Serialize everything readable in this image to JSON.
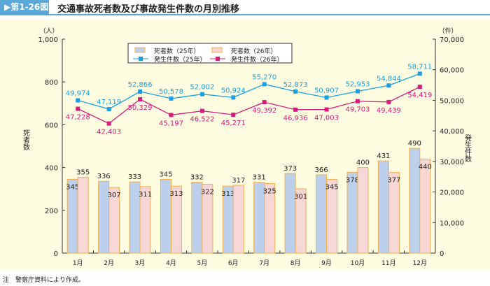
{
  "header": {
    "figure_label": "▶第1-26図",
    "title": "交通事故死者数及び事故発生件数の月別推移"
  },
  "note": "注　警察庁資料により作成。",
  "colors": {
    "deaths25": "#bcd0ec",
    "deaths26": "#f7d6d6",
    "bar_border": "#f0b050",
    "accidents25": "#1aa0e0",
    "accidents26": "#d81b7a"
  },
  "chart_data": {
    "type": "bar+line",
    "categories": [
      "1月",
      "2月",
      "3月",
      "4月",
      "5月",
      "6月",
      "7月",
      "8月",
      "9月",
      "10月",
      "11月",
      "12月"
    ],
    "left_axis": {
      "unit": "（人）",
      "label": "死者数",
      "ylim": [
        0,
        1000
      ],
      "ticks": [
        "0",
        "200",
        "400",
        "600",
        "800",
        "1,000"
      ]
    },
    "right_axis": {
      "unit": "（件）",
      "label": "発生件数",
      "ylim": [
        0,
        70000
      ],
      "ticks": [
        "0",
        "10,000",
        "20,000",
        "30,000",
        "40,000",
        "50,000",
        "60,000",
        "70,000"
      ]
    },
    "series": [
      {
        "name": "死者数（25年）",
        "kind": "bar",
        "axis": "left",
        "values": [
          345,
          336,
          333,
          345,
          332,
          313,
          331,
          373,
          366,
          378,
          431,
          490
        ],
        "labels": [
          "345",
          "336",
          "333",
          "345",
          "332",
          "313",
          "331",
          "373",
          "366",
          "378",
          "431",
          "490"
        ]
      },
      {
        "name": "死者数（26年）",
        "kind": "bar",
        "axis": "left",
        "values": [
          355,
          307,
          311,
          313,
          322,
          317,
          325,
          301,
          345,
          400,
          377,
          440
        ],
        "labels": [
          "355",
          "307",
          "311",
          "313",
          "322",
          "317",
          "325",
          "301",
          "345",
          "400",
          "377",
          "440"
        ]
      },
      {
        "name": "発生件数（25年）",
        "kind": "line",
        "axis": "right",
        "values": [
          49974,
          47119,
          52866,
          50578,
          52002,
          50924,
          55270,
          52873,
          50907,
          52953,
          54844,
          58711
        ],
        "labels": [
          "49,974",
          "47,119",
          "52,866",
          "50,578",
          "52,002",
          "50,924",
          "55,270",
          "52,873",
          "50,907",
          "52,953",
          "54,844",
          "58,711"
        ]
      },
      {
        "name": "発生件数（26年）",
        "kind": "line",
        "axis": "right",
        "values": [
          47228,
          42403,
          50329,
          45197,
          46522,
          45271,
          49392,
          46936,
          47003,
          49703,
          49439,
          54419
        ],
        "labels": [
          "47,228",
          "42,403",
          "50,329",
          "45,197",
          "46,522",
          "45,271",
          "49,392",
          "46,936",
          "47,003",
          "49,703",
          "49,439",
          "54,419"
        ]
      }
    ],
    "legend": "top-center"
  }
}
